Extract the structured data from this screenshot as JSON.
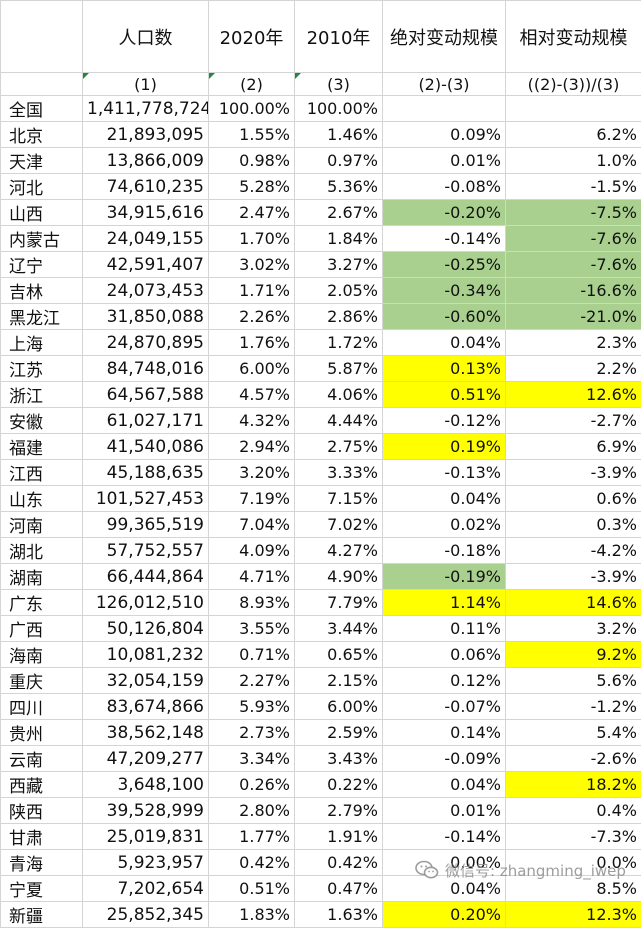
{
  "headers": {
    "population": "人口数",
    "y2020": "2020年",
    "y2010": "2010年",
    "abs_change": "绝对变动规模",
    "rel_change": "相对变动规模"
  },
  "subheaders": {
    "c1": "(1)",
    "c2": "(2)",
    "c3": "(3)",
    "c4": "(2)-(3)",
    "c5": "((2)-(3))/(3)"
  },
  "rows": [
    {
      "region": "全国",
      "population": "1,411,778,724",
      "p2020": "100.00%",
      "p2010": "100.00%",
      "abs": "",
      "rel": "",
      "abs_hl": "",
      "rel_hl": ""
    },
    {
      "region": "北京",
      "population": "21,893,095",
      "p2020": "1.55%",
      "p2010": "1.46%",
      "abs": "0.09%",
      "rel": "6.2%",
      "abs_hl": "",
      "rel_hl": ""
    },
    {
      "region": "天津",
      "population": "13,866,009",
      "p2020": "0.98%",
      "p2010": "0.97%",
      "abs": "0.01%",
      "rel": "1.0%",
      "abs_hl": "",
      "rel_hl": ""
    },
    {
      "region": "河北",
      "population": "74,610,235",
      "p2020": "5.28%",
      "p2010": "5.36%",
      "abs": "-0.08%",
      "rel": "-1.5%",
      "abs_hl": "",
      "rel_hl": ""
    },
    {
      "region": "山西",
      "population": "34,915,616",
      "p2020": "2.47%",
      "p2010": "2.67%",
      "abs": "-0.20%",
      "rel": "-7.5%",
      "abs_hl": "green",
      "rel_hl": "green"
    },
    {
      "region": "内蒙古",
      "population": "24,049,155",
      "p2020": "1.70%",
      "p2010": "1.84%",
      "abs": "-0.14%",
      "rel": "-7.6%",
      "abs_hl": "",
      "rel_hl": "green"
    },
    {
      "region": "辽宁",
      "population": "42,591,407",
      "p2020": "3.02%",
      "p2010": "3.27%",
      "abs": "-0.25%",
      "rel": "-7.6%",
      "abs_hl": "green",
      "rel_hl": "green"
    },
    {
      "region": "吉林",
      "population": "24,073,453",
      "p2020": "1.71%",
      "p2010": "2.05%",
      "abs": "-0.34%",
      "rel": "-16.6%",
      "abs_hl": "green",
      "rel_hl": "green"
    },
    {
      "region": "黑龙江",
      "population": "31,850,088",
      "p2020": "2.26%",
      "p2010": "2.86%",
      "abs": "-0.60%",
      "rel": "-21.0%",
      "abs_hl": "green",
      "rel_hl": "green"
    },
    {
      "region": "上海",
      "population": "24,870,895",
      "p2020": "1.76%",
      "p2010": "1.72%",
      "abs": "0.04%",
      "rel": "2.3%",
      "abs_hl": "",
      "rel_hl": ""
    },
    {
      "region": "江苏",
      "population": "84,748,016",
      "p2020": "6.00%",
      "p2010": "5.87%",
      "abs": "0.13%",
      "rel": "2.2%",
      "abs_hl": "yellow",
      "rel_hl": ""
    },
    {
      "region": "浙江",
      "population": "64,567,588",
      "p2020": "4.57%",
      "p2010": "4.06%",
      "abs": "0.51%",
      "rel": "12.6%",
      "abs_hl": "yellow",
      "rel_hl": "yellow"
    },
    {
      "region": "安徽",
      "population": "61,027,171",
      "p2020": "4.32%",
      "p2010": "4.44%",
      "abs": "-0.12%",
      "rel": "-2.7%",
      "abs_hl": "",
      "rel_hl": ""
    },
    {
      "region": "福建",
      "population": "41,540,086",
      "p2020": "2.94%",
      "p2010": "2.75%",
      "abs": "0.19%",
      "rel": "6.9%",
      "abs_hl": "yellow",
      "rel_hl": ""
    },
    {
      "region": "江西",
      "population": "45,188,635",
      "p2020": "3.20%",
      "p2010": "3.33%",
      "abs": "-0.13%",
      "rel": "-3.9%",
      "abs_hl": "",
      "rel_hl": ""
    },
    {
      "region": "山东",
      "population": "101,527,453",
      "p2020": "7.19%",
      "p2010": "7.15%",
      "abs": "0.04%",
      "rel": "0.6%",
      "abs_hl": "",
      "rel_hl": ""
    },
    {
      "region": "河南",
      "population": "99,365,519",
      "p2020": "7.04%",
      "p2010": "7.02%",
      "abs": "0.02%",
      "rel": "0.3%",
      "abs_hl": "",
      "rel_hl": ""
    },
    {
      "region": "湖北",
      "population": "57,752,557",
      "p2020": "4.09%",
      "p2010": "4.27%",
      "abs": "-0.18%",
      "rel": "-4.2%",
      "abs_hl": "",
      "rel_hl": ""
    },
    {
      "region": "湖南",
      "population": "66,444,864",
      "p2020": "4.71%",
      "p2010": "4.90%",
      "abs": "-0.19%",
      "rel": "-3.9%",
      "abs_hl": "green",
      "rel_hl": ""
    },
    {
      "region": "广东",
      "population": "126,012,510",
      "p2020": "8.93%",
      "p2010": "7.79%",
      "abs": "1.14%",
      "rel": "14.6%",
      "abs_hl": "yellow",
      "rel_hl": "yellow"
    },
    {
      "region": "广西",
      "population": "50,126,804",
      "p2020": "3.55%",
      "p2010": "3.44%",
      "abs": "0.11%",
      "rel": "3.2%",
      "abs_hl": "",
      "rel_hl": ""
    },
    {
      "region": "海南",
      "population": "10,081,232",
      "p2020": "0.71%",
      "p2010": "0.65%",
      "abs": "0.06%",
      "rel": "9.2%",
      "abs_hl": "",
      "rel_hl": "yellow"
    },
    {
      "region": "重庆",
      "population": "32,054,159",
      "p2020": "2.27%",
      "p2010": "2.15%",
      "abs": "0.12%",
      "rel": "5.6%",
      "abs_hl": "",
      "rel_hl": ""
    },
    {
      "region": "四川",
      "population": "83,674,866",
      "p2020": "5.93%",
      "p2010": "6.00%",
      "abs": "-0.07%",
      "rel": "-1.2%",
      "abs_hl": "",
      "rel_hl": ""
    },
    {
      "region": "贵州",
      "population": "38,562,148",
      "p2020": "2.73%",
      "p2010": "2.59%",
      "abs": "0.14%",
      "rel": "5.4%",
      "abs_hl": "",
      "rel_hl": ""
    },
    {
      "region": "云南",
      "population": "47,209,277",
      "p2020": "3.34%",
      "p2010": "3.43%",
      "abs": "-0.09%",
      "rel": "-2.6%",
      "abs_hl": "",
      "rel_hl": ""
    },
    {
      "region": "西藏",
      "population": "3,648,100",
      "p2020": "0.26%",
      "p2010": "0.22%",
      "abs": "0.04%",
      "rel": "18.2%",
      "abs_hl": "",
      "rel_hl": "yellow"
    },
    {
      "region": "陕西",
      "population": "39,528,999",
      "p2020": "2.80%",
      "p2010": "2.79%",
      "abs": "0.01%",
      "rel": "0.4%",
      "abs_hl": "",
      "rel_hl": ""
    },
    {
      "region": "甘肃",
      "population": "25,019,831",
      "p2020": "1.77%",
      "p2010": "1.91%",
      "abs": "-0.14%",
      "rel": "-7.3%",
      "abs_hl": "",
      "rel_hl": ""
    },
    {
      "region": "青海",
      "population": "5,923,957",
      "p2020": "0.42%",
      "p2010": "0.42%",
      "abs": "0.00%",
      "rel": "0.0%",
      "abs_hl": "",
      "rel_hl": ""
    },
    {
      "region": "宁夏",
      "population": "7,202,654",
      "p2020": "0.51%",
      "p2010": "0.47%",
      "abs": "0.04%",
      "rel": "8.5%",
      "abs_hl": "",
      "rel_hl": ""
    },
    {
      "region": "新疆",
      "population": "25,852,345",
      "p2020": "1.83%",
      "p2010": "1.63%",
      "abs": "0.20%",
      "rel": "12.3%",
      "abs_hl": "yellow",
      "rel_hl": "yellow"
    }
  ],
  "watermark": {
    "text": "微信号: zhangming_iwep",
    "icon": "wechat-icon"
  },
  "colors": {
    "green_highlight": "#a9d08e",
    "yellow_highlight": "#ffff00",
    "grid": "#d4d4d4"
  }
}
